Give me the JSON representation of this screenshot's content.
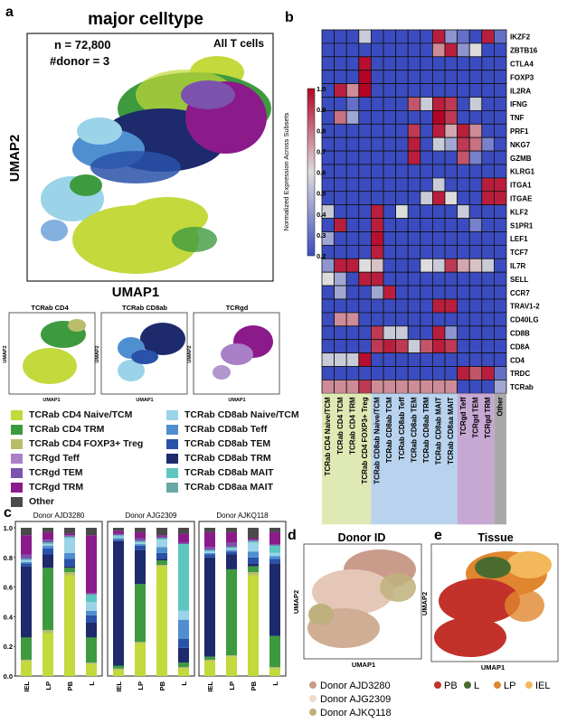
{
  "panel_labels": {
    "a": "a",
    "b": "b",
    "c": "c",
    "d": "d",
    "e": "e"
  },
  "colors": {
    "cd4_naive": "#c3d93c",
    "cd4_trm": "#3e9a3e",
    "cd4_foxp3": "#b9bd6a",
    "gd_teff": "#a97fc7",
    "gd_tem": "#7b52ad",
    "gd_trm": "#8b1a8b",
    "other": "#4a4a4a",
    "cd8_naive": "#9bd3e8",
    "cd8_teff": "#4f8fd0",
    "cd8_tem": "#2952a8",
    "cd8_trm": "#1d2a6b",
    "cd8_mait": "#5ec6c0",
    "cd8aa_mait": "#6aa7a7",
    "donor1": "#c99b8a",
    "donor2": "#f1d9cc",
    "donor3": "#bfb17d",
    "pb": "#c2322b",
    "l": "#4b6b2e",
    "lp": "#e0862e",
    "iel": "#f3b85a"
  },
  "panel_a": {
    "title": "major celltype",
    "n_label": "n = 72,800",
    "donor_label": "#donor = 3",
    "subset_label": "All T cells",
    "xlabel": "UMAP1",
    "ylabel": "UMAP2",
    "small_titles": [
      "TCRab CD4",
      "TCRab CD8ab",
      "TCRgd"
    ],
    "small_xlabel": "UMAP1",
    "small_ylabel": "UMAP2"
  },
  "legend_a": [
    {
      "label": "TCRab CD4 Naive/TCM",
      "color_key": "cd4_naive"
    },
    {
      "label": "TCRab CD4 TRM",
      "color_key": "cd4_trm"
    },
    {
      "label": "TCRab CD4 FOXP3+ Treg",
      "color_key": "cd4_foxp3"
    },
    {
      "label": "TCRgd Teff",
      "color_key": "gd_teff"
    },
    {
      "label": "TCRgd TEM",
      "color_key": "gd_tem"
    },
    {
      "label": "TCRgd TRM",
      "color_key": "gd_trm"
    },
    {
      "label": "Other",
      "color_key": "other"
    },
    {
      "label": "TCRab CD8ab Naive/TCM",
      "color_key": "cd8_naive"
    },
    {
      "label": "TCRab CD8ab Teff",
      "color_key": "cd8_teff"
    },
    {
      "label": "TCRab CD8ab TEM",
      "color_key": "cd8_tem"
    },
    {
      "label": "TCRab CD8ab TRM",
      "color_key": "cd8_trm"
    },
    {
      "label": "TCRab CD8ab MAIT",
      "color_key": "cd8_mait"
    },
    {
      "label": "TCRab CD8aa MAIT",
      "color_key": "cd8aa_mait"
    }
  ],
  "chart_data": [
    {
      "type": "heatmap",
      "panel": "b",
      "colorbar_label": "Normalized Expression Across Subsets",
      "colorbar_ticks": [
        "1.0",
        "0.9",
        "0.8",
        "0.7",
        "0.6",
        "0.5",
        "0.4",
        "0.3",
        "0.2"
      ],
      "vlim": [
        0.2,
        1.0
      ],
      "genes": [
        "IKZF2",
        "ZBTB16",
        "CTLA4",
        "FOXP3",
        "IL2RA",
        "IFNG",
        "TNF",
        "PRF1",
        "NKG7",
        "GZMB",
        "KLRG1",
        "ITGA1",
        "ITGAE",
        "KLF2",
        "S1PR1",
        "LEF1",
        "TCF7",
        "IL7R",
        "SELL",
        "CCR7",
        "TRAV1-2",
        "CD40LG",
        "CD8B",
        "CD8A",
        "CD4",
        "TRDC",
        "TCRab"
      ],
      "subsets": [
        "TCRab CD4 Naive/TCM",
        "TCRab CD4 TCM",
        "TCRab CD4 TRM",
        "TCRab CD4 FOXP3+ Treg",
        "TCRab CD8ab Naive/TCM",
        "TCRab CD8ab TCM",
        "TCRab CD8ab Teff",
        "TCRab CD8ab TEM",
        "TCRab CD8ab TRM",
        "TCRab CD8ab MAIT",
        "TCRab CD8aa MAIT",
        "TCRgd Teff",
        "TCRgd TEM",
        "TCRgd TRM",
        "Other"
      ],
      "groups": [
        {
          "name": "CD4",
          "span": [
            0,
            3
          ],
          "color": "#dfe9b4"
        },
        {
          "name": "CD8",
          "span": [
            4,
            10
          ],
          "color": "#b9d3ee"
        },
        {
          "name": "gd",
          "span": [
            11,
            13
          ],
          "color": "#c7a8d3"
        },
        {
          "name": "Other",
          "span": [
            14,
            14
          ],
          "color": "#a9a9a9"
        }
      ],
      "values": [
        [
          0.2,
          0.2,
          0.2,
          0.55,
          0.2,
          0.2,
          0.2,
          0.2,
          0.2,
          0.95,
          0.4,
          0.3,
          0.2,
          0.95,
          0.3
        ],
        [
          0.2,
          0.2,
          0.2,
          0.2,
          0.2,
          0.2,
          0.2,
          0.2,
          0.2,
          0.75,
          0.95,
          0.4,
          0.6,
          0.2,
          0.2
        ],
        [
          0.2,
          0.2,
          0.2,
          0.98,
          0.2,
          0.2,
          0.2,
          0.2,
          0.2,
          0.2,
          0.2,
          0.2,
          0.2,
          0.2,
          0.2
        ],
        [
          0.2,
          0.2,
          0.2,
          1.0,
          0.2,
          0.2,
          0.2,
          0.2,
          0.2,
          0.2,
          0.2,
          0.2,
          0.2,
          0.2,
          0.2
        ],
        [
          0.2,
          0.95,
          0.75,
          1.0,
          0.2,
          0.2,
          0.2,
          0.2,
          0.2,
          0.2,
          0.2,
          0.2,
          0.2,
          0.2,
          0.2
        ],
        [
          0.2,
          0.2,
          0.3,
          0.2,
          0.2,
          0.2,
          0.2,
          0.85,
          0.55,
          0.95,
          0.9,
          0.2,
          0.55,
          0.2,
          0.2
        ],
        [
          0.2,
          0.8,
          0.45,
          0.2,
          0.2,
          0.2,
          0.2,
          0.2,
          0.2,
          1.0,
          0.9,
          0.2,
          0.2,
          0.2,
          0.2
        ],
        [
          0.2,
          0.2,
          0.2,
          0.2,
          0.2,
          0.2,
          0.2,
          0.9,
          0.2,
          0.95,
          0.7,
          0.95,
          0.75,
          0.2,
          0.2
        ],
        [
          0.2,
          0.2,
          0.2,
          0.2,
          0.2,
          0.2,
          0.2,
          0.95,
          0.2,
          0.55,
          0.45,
          0.9,
          0.8,
          0.35,
          0.2
        ],
        [
          0.2,
          0.2,
          0.2,
          0.2,
          0.2,
          0.2,
          0.2,
          0.95,
          0.2,
          0.2,
          0.2,
          0.85,
          0.35,
          0.2,
          0.2
        ],
        [
          0.2,
          0.2,
          0.2,
          0.2,
          0.2,
          0.2,
          0.2,
          0.2,
          0.2,
          0.2,
          0.2,
          0.2,
          0.2,
          0.2,
          0.2
        ],
        [
          0.2,
          0.2,
          0.2,
          0.2,
          0.2,
          0.2,
          0.2,
          0.2,
          0.2,
          0.55,
          0.2,
          0.2,
          0.2,
          0.95,
          0.95
        ],
        [
          0.2,
          0.2,
          0.2,
          0.2,
          0.2,
          0.2,
          0.2,
          0.2,
          0.55,
          0.95,
          0.6,
          0.2,
          0.2,
          0.95,
          0.95
        ],
        [
          0.55,
          0.2,
          0.2,
          0.2,
          0.95,
          0.2,
          0.6,
          0.2,
          0.2,
          0.2,
          0.2,
          0.55,
          0.2,
          0.2,
          0.2
        ],
        [
          0.2,
          0.95,
          0.2,
          0.2,
          0.95,
          0.2,
          0.2,
          0.2,
          0.2,
          0.2,
          0.2,
          0.2,
          0.35,
          0.2,
          0.2
        ],
        [
          0.45,
          0.2,
          0.2,
          0.2,
          0.98,
          0.2,
          0.2,
          0.2,
          0.2,
          0.2,
          0.2,
          0.2,
          0.2,
          0.2,
          0.2
        ],
        [
          0.2,
          0.2,
          0.2,
          0.2,
          0.95,
          0.2,
          0.2,
          0.2,
          0.2,
          0.2,
          0.2,
          0.2,
          0.2,
          0.2,
          0.2
        ],
        [
          0.4,
          0.95,
          0.95,
          0.6,
          0.65,
          0.2,
          0.2,
          0.2,
          0.6,
          0.55,
          0.9,
          0.7,
          0.65,
          0.55,
          0.2
        ],
        [
          0.6,
          0.45,
          0.2,
          0.95,
          0.95,
          0.2,
          0.2,
          0.2,
          0.2,
          0.2,
          0.2,
          0.2,
          0.2,
          0.2,
          0.2
        ],
        [
          0.2,
          0.45,
          0.2,
          0.2,
          0.45,
          0.95,
          0.2,
          0.2,
          0.2,
          0.2,
          0.2,
          0.2,
          0.2,
          0.2,
          0.2
        ],
        [
          0.2,
          0.2,
          0.2,
          0.2,
          0.2,
          0.2,
          0.2,
          0.2,
          0.2,
          0.95,
          0.95,
          0.2,
          0.2,
          0.2,
          0.2
        ],
        [
          0.2,
          0.75,
          0.75,
          0.2,
          0.2,
          0.2,
          0.2,
          0.2,
          0.2,
          0.2,
          0.2,
          0.2,
          0.2,
          0.2,
          0.2
        ],
        [
          0.2,
          0.2,
          0.2,
          0.2,
          0.9,
          0.55,
          0.55,
          0.2,
          0.2,
          0.95,
          0.4,
          0.2,
          0.2,
          0.2,
          0.2
        ],
        [
          0.2,
          0.2,
          0.2,
          0.2,
          0.9,
          0.95,
          0.9,
          0.55,
          0.85,
          0.95,
          0.9,
          0.2,
          0.2,
          0.2,
          0.2
        ],
        [
          0.55,
          0.55,
          0.55,
          0.98,
          0.2,
          0.2,
          0.2,
          0.2,
          0.2,
          0.2,
          0.2,
          0.2,
          0.2,
          0.2,
          0.2
        ],
        [
          0.2,
          0.2,
          0.2,
          0.2,
          0.2,
          0.2,
          0.2,
          0.2,
          0.2,
          0.2,
          0.2,
          0.95,
          0.85,
          0.95,
          0.3
        ],
        [
          0.75,
          0.75,
          0.75,
          0.9,
          0.75,
          0.75,
          0.75,
          0.75,
          0.75,
          0.75,
          0.75,
          0.2,
          0.2,
          0.2,
          0.45
        ]
      ]
    },
    {
      "type": "bar",
      "panel": "c",
      "stacked": true,
      "ylim": [
        0,
        1.0
      ],
      "yticks": [
        "0.0",
        "0.2",
        "0.4",
        "0.6",
        "0.8",
        "1.0"
      ],
      "categories": [
        "IEL",
        "LP",
        "PB",
        "L"
      ],
      "stack_order": [
        "cd4_naive",
        "cd4_foxp3",
        "cd4_trm",
        "cd8_trm",
        "cd8_tem",
        "cd8_teff",
        "cd8_naive",
        "cd8_mait",
        "gd_tem",
        "gd_trm",
        "other"
      ],
      "donors": [
        {
          "name": "Donor AJD3280",
          "bars": [
            [
              0.1,
              0.01,
              0.15,
              0.48,
              0.02,
              0.01,
              0.01,
              0.01,
              0.03,
              0.13,
              0.05
            ],
            [
              0.29,
              0.02,
              0.42,
              0.09,
              0.04,
              0.02,
              0.01,
              0.01,
              0.02,
              0.05,
              0.03
            ],
            [
              0.68,
              0.02,
              0.03,
              0.01,
              0.05,
              0.04,
              0.1,
              0.01,
              0.01,
              0.01,
              0.04
            ],
            [
              0.08,
              0.01,
              0.17,
              0.1,
              0.05,
              0.03,
              0.06,
              0.05,
              0.01,
              0.39,
              0.05
            ]
          ]
        },
        {
          "name": "Donor AJG2309",
          "bars": [
            [
              0.04,
              0.01,
              0.02,
              0.84,
              0.01,
              0.01,
              0.01,
              0.01,
              0.01,
              0.02,
              0.02
            ],
            [
              0.22,
              0.01,
              0.39,
              0.23,
              0.03,
              0.01,
              0.01,
              0.01,
              0.02,
              0.04,
              0.03
            ],
            [
              0.74,
              0.01,
              0.03,
              0.01,
              0.04,
              0.04,
              0.05,
              0.01,
              0.01,
              0.01,
              0.05
            ],
            [
              0.05,
              0.01,
              0.03,
              0.1,
              0.06,
              0.13,
              0.06,
              0.45,
              0.01,
              0.06,
              0.04
            ]
          ]
        },
        {
          "name": "Donor AJKQ118",
          "bars": [
            [
              0.1,
              0.01,
              0.02,
              0.67,
              0.02,
              0.01,
              0.01,
              0.01,
              0.02,
              0.1,
              0.03
            ],
            [
              0.13,
              0.01,
              0.58,
              0.1,
              0.02,
              0.01,
              0.01,
              0.01,
              0.03,
              0.07,
              0.03
            ],
            [
              0.68,
              0.02,
              0.04,
              0.02,
              0.04,
              0.04,
              0.06,
              0.01,
              0.01,
              0.01,
              0.07
            ],
            [
              0.05,
              0.01,
              0.21,
              0.49,
              0.03,
              0.02,
              0.02,
              0.05,
              0.01,
              0.08,
              0.03
            ]
          ]
        }
      ]
    }
  ],
  "panel_d": {
    "title": "Donor ID",
    "xlabel": "UMAP1",
    "ylabel": "UMAP2",
    "legend": [
      {
        "label": "Donor AJD3280",
        "color_key": "donor1"
      },
      {
        "label": "Donor AJG2309",
        "color_key": "donor2"
      },
      {
        "label": "Donor AJKQ118",
        "color_key": "donor3"
      }
    ]
  },
  "panel_e": {
    "title": "Tissue",
    "xlabel": "UMAP1",
    "ylabel": "UMAP2",
    "legend": [
      {
        "label": "PB",
        "color_key": "pb"
      },
      {
        "label": "L",
        "color_key": "l"
      },
      {
        "label": "LP",
        "color_key": "lp"
      },
      {
        "label": "IEL",
        "color_key": "iel"
      }
    ]
  }
}
